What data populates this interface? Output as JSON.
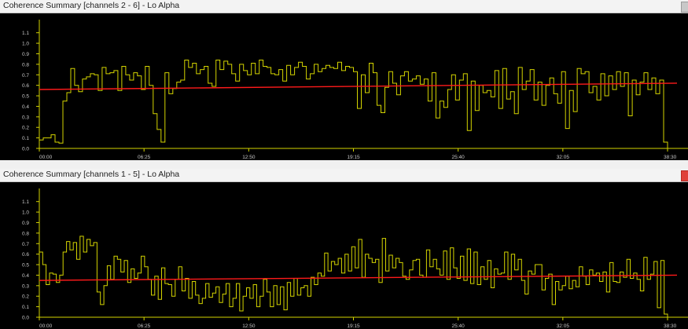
{
  "panels": [
    {
      "title": "Coherence Summary [channels 2 - 6] - Lo Alpha",
      "close_active": false,
      "chart_data": {
        "type": "line",
        "xlabel": "",
        "ylabel": "",
        "x_ticks": [
          "00:00",
          "06:25",
          "12:50",
          "19:15",
          "25:40",
          "32:05",
          "38:30"
        ],
        "y_ticks": [
          "0.0",
          "0.1",
          "0.2",
          "0.3",
          "0.4",
          "0.5",
          "0.6",
          "0.7",
          "0.8",
          "0.9",
          "1.0",
          "1.1"
        ],
        "x_range_seconds": [
          0,
          2310
        ],
        "ylim": [
          0,
          1.15
        ],
        "grid": false,
        "series": [
          {
            "color": "#d4d400",
            "style": "step",
            "values": [
              0.08,
              0.1,
              0.1,
              0.13,
              0.06,
              0.05,
              0.45,
              0.53,
              0.76,
              0.6,
              0.54,
              0.66,
              0.68,
              0.71,
              0.7,
              0.55,
              0.77,
              0.71,
              0.72,
              0.74,
              0.55,
              0.78,
              0.7,
              0.65,
              0.72,
              0.69,
              0.56,
              0.78,
              0.6,
              0.33,
              0.18,
              0.06,
              0.72,
              0.52,
              0.57,
              0.63,
              0.65,
              0.84,
              0.77,
              0.81,
              0.71,
              0.75,
              0.78,
              0.62,
              0.59,
              0.84,
              0.75,
              0.83,
              0.8,
              0.71,
              0.64,
              0.8,
              0.74,
              0.7,
              0.81,
              0.71,
              0.84,
              0.78,
              0.77,
              0.71,
              0.7,
              0.75,
              0.64,
              0.79,
              0.7,
              0.77,
              0.82,
              0.78,
              0.66,
              0.71,
              0.8,
              0.73,
              0.76,
              0.79,
              0.77,
              0.76,
              0.82,
              0.74,
              0.78,
              0.77,
              0.73,
              0.38,
              0.7,
              0.53,
              0.81,
              0.72,
              0.41,
              0.34,
              0.58,
              0.73,
              0.62,
              0.51,
              0.69,
              0.73,
              0.64,
              0.66,
              0.69,
              0.61,
              0.66,
              0.45,
              0.72,
              0.29,
              0.45,
              0.39,
              0.56,
              0.7,
              0.46,
              0.65,
              0.71,
              0.17,
              0.64,
              0.36,
              0.6,
              0.53,
              0.55,
              0.49,
              0.74,
              0.38,
              0.76,
              0.47,
              0.54,
              0.33,
              0.77,
              0.56,
              0.64,
              0.75,
              0.46,
              0.63,
              0.41,
              0.6,
              0.67,
              0.52,
              0.43,
              0.73,
              0.19,
              0.55,
              0.35,
              0.76,
              0.71,
              0.73,
              0.53,
              0.59,
              0.46,
              0.71,
              0.5,
              0.69,
              0.56,
              0.73,
              0.59,
              0.72,
              0.31,
              0.65,
              0.51,
              0.63,
              0.72,
              0.56,
              0.67,
              0.52,
              0.65,
              0.06
            ]
          },
          {
            "color": "#ff1a1a",
            "style": "trend",
            "values": [
              0.56,
              0.62
            ]
          }
        ]
      }
    },
    {
      "title": "Coherence Summary [channels 1 - 5] - Lo Alpha",
      "close_active": true,
      "chart_data": {
        "type": "line",
        "xlabel": "",
        "ylabel": "",
        "x_ticks": [
          "00:00",
          "06:25",
          "12:50",
          "19:15",
          "25:40",
          "32:05",
          "38:30"
        ],
        "y_ticks": [
          "0.0",
          "0.1",
          "0.2",
          "0.3",
          "0.4",
          "0.5",
          "0.6",
          "0.7",
          "0.8",
          "0.9",
          "1.0",
          "1.1"
        ],
        "x_range_seconds": [
          0,
          2310
        ],
        "ylim": [
          0,
          1.15
        ],
        "grid": false,
        "series": [
          {
            "color": "#d4d400",
            "style": "step",
            "values": [
              0.62,
              0.5,
              0.31,
              0.42,
              0.41,
              0.33,
              0.4,
              0.62,
              0.72,
              0.64,
              0.71,
              0.55,
              0.77,
              0.62,
              0.74,
              0.68,
              0.71,
              0.24,
              0.12,
              0.3,
              0.49,
              0.36,
              0.58,
              0.55,
              0.43,
              0.54,
              0.33,
              0.46,
              0.37,
              0.42,
              0.58,
              0.48,
              0.36,
              0.21,
              0.39,
              0.17,
              0.47,
              0.32,
              0.31,
              0.2,
              0.36,
              0.48,
              0.25,
              0.37,
              0.18,
              0.34,
              0.21,
              0.13,
              0.18,
              0.32,
              0.19,
              0.23,
              0.29,
              0.14,
              0.22,
              0.32,
              0.1,
              0.18,
              0.32,
              0.06,
              0.2,
              0.28,
              0.18,
              0.31,
              0.1,
              0.2,
              0.36,
              0.24,
              0.1,
              0.3,
              0.12,
              0.29,
              0.07,
              0.33,
              0.2,
              0.37,
              0.21,
              0.28,
              0.3,
              0.2,
              0.38,
              0.31,
              0.42,
              0.39,
              0.61,
              0.44,
              0.53,
              0.5,
              0.56,
              0.42,
              0.6,
              0.44,
              0.67,
              0.47,
              0.74,
              0.38,
              0.6,
              0.56,
              0.52,
              0.55,
              0.33,
              0.75,
              0.44,
              0.59,
              0.47,
              0.56,
              0.52,
              0.39,
              0.36,
              0.45,
              0.54,
              0.55,
              0.4,
              0.38,
              0.64,
              0.48,
              0.55,
              0.46,
              0.4,
              0.63,
              0.36,
              0.66,
              0.47,
              0.37,
              0.58,
              0.35,
              0.65,
              0.32,
              0.62,
              0.31,
              0.48,
              0.36,
              0.54,
              0.28,
              0.46,
              0.41,
              0.42,
              0.62,
              0.36,
              0.6,
              0.45,
              0.55,
              0.35,
              0.22,
              0.44,
              0.41,
              0.5,
              0.5,
              0.26,
              0.37,
              0.41,
              0.12,
              0.34,
              0.26,
              0.3,
              0.39,
              0.27,
              0.35,
              0.29,
              0.48,
              0.39,
              0.31,
              0.45,
              0.4,
              0.42,
              0.34,
              0.43,
              0.24,
              0.52,
              0.34,
              0.33,
              0.43,
              0.38,
              0.55,
              0.37,
              0.42,
              0.36,
              0.25,
              0.57,
              0.36,
              0.41,
              0.53,
              0.09,
              0.54,
              0.03
            ]
          },
          {
            "color": "#ff1a1a",
            "style": "trend",
            "values": [
              0.35,
              0.4
            ]
          }
        ]
      }
    }
  ]
}
